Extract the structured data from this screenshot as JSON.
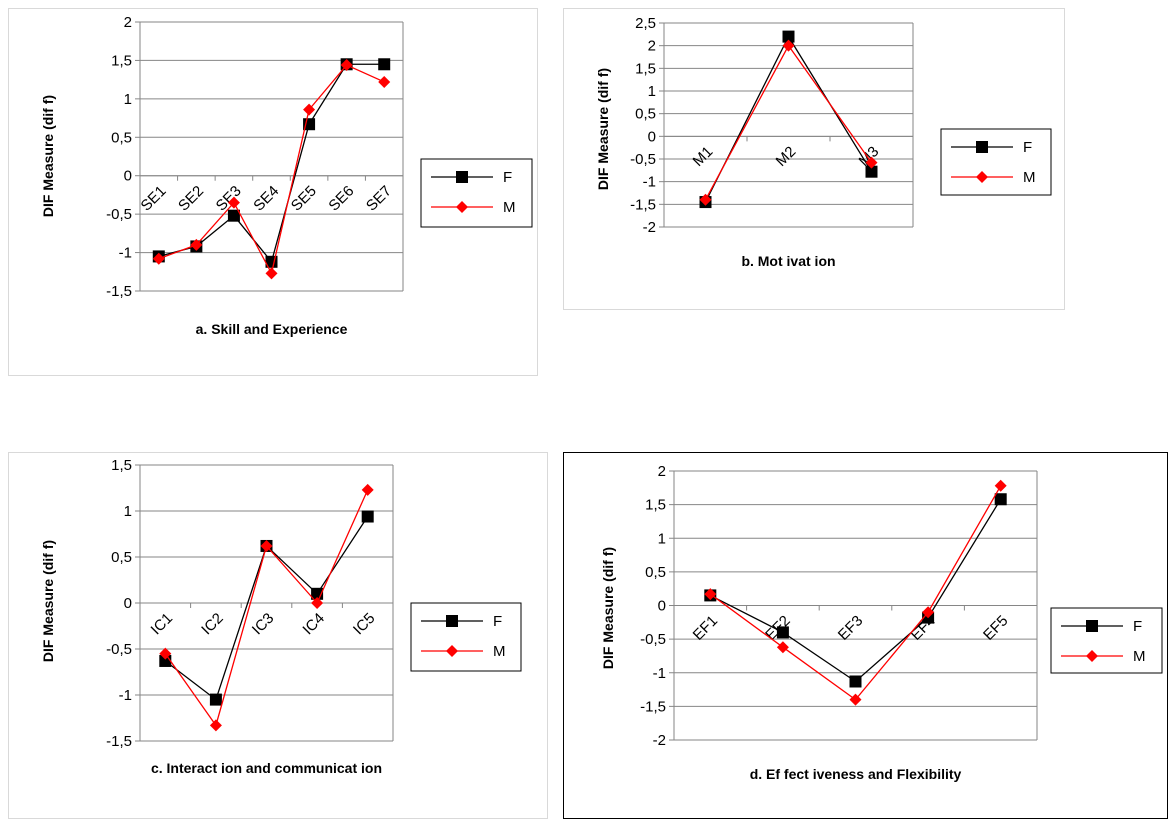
{
  "chart_data": [
    {
      "type": "line",
      "title": "a. Skill and Experience",
      "ylabel": "DIF Measure (dif f)",
      "categories": [
        "SE1",
        "SE2",
        "SE3",
        "SE4",
        "SE5",
        "SE6",
        "SE7"
      ],
      "ylim": [
        -1.5,
        2
      ],
      "yticks": [
        "-1,5",
        "-1",
        "-0,5",
        "0",
        "0,5",
        "1",
        "1,5",
        "2"
      ],
      "grid": true,
      "legend": "right",
      "series": [
        {
          "name": "F",
          "color": "#000000",
          "marker": "square",
          "values": [
            -1.05,
            -0.92,
            -0.52,
            -1.12,
            0.67,
            1.45,
            1.45
          ]
        },
        {
          "name": "M",
          "color": "#ff0000",
          "marker": "diamond",
          "values": [
            -1.08,
            -0.9,
            -0.35,
            -1.27,
            0.86,
            1.44,
            1.22
          ]
        }
      ]
    },
    {
      "type": "line",
      "title": "b. Mot ivat ion",
      "ylabel": "DIF Measure (dif f)",
      "categories": [
        "M1",
        "M2",
        "M3"
      ],
      "ylim": [
        -2,
        2.5
      ],
      "yticks": [
        "-2",
        "-1,5",
        "-1",
        "-0,5",
        "0",
        "0,5",
        "1",
        "1,5",
        "2",
        "2,5"
      ],
      "grid": true,
      "legend": "right",
      "series": [
        {
          "name": "F",
          "color": "#000000",
          "marker": "square",
          "values": [
            -1.45,
            2.2,
            -0.78
          ]
        },
        {
          "name": "M",
          "color": "#ff0000",
          "marker": "diamond",
          "values": [
            -1.4,
            2.0,
            -0.58
          ]
        }
      ]
    },
    {
      "type": "line",
      "title": "c. Interact ion and communicat ion",
      "ylabel": "DIF Measure (dif f)",
      "categories": [
        "IC1",
        "IC2",
        "IC3",
        "IC4",
        "IC5"
      ],
      "ylim": [
        -1.5,
        1.5
      ],
      "yticks": [
        "-1,5",
        "-1",
        "-0,5",
        "0",
        "0,5",
        "1",
        "1,5"
      ],
      "grid": true,
      "legend": "right",
      "series": [
        {
          "name": "F",
          "color": "#000000",
          "marker": "square",
          "values": [
            -0.63,
            -1.05,
            0.62,
            0.1,
            0.94
          ]
        },
        {
          "name": "M",
          "color": "#ff0000",
          "marker": "diamond",
          "values": [
            -0.55,
            -1.33,
            0.62,
            0.0,
            1.23
          ]
        }
      ]
    },
    {
      "type": "line",
      "title": "d. Ef fect iveness and Flexibility",
      "ylabel": "DIF Measure (dif f)",
      "categories": [
        "EF1",
        "EF2",
        "EF3",
        "EF4",
        "EF5"
      ],
      "ylim": [
        -2,
        2
      ],
      "yticks": [
        "-2",
        "-1,5",
        "-1",
        "-0,5",
        "0",
        "0,5",
        "1",
        "1,5",
        "2"
      ],
      "grid": true,
      "legend": "right",
      "series": [
        {
          "name": "F",
          "color": "#000000",
          "marker": "square",
          "values": [
            0.15,
            -0.4,
            -1.13,
            -0.18,
            1.58
          ]
        },
        {
          "name": "M",
          "color": "#ff0000",
          "marker": "diamond",
          "values": [
            0.17,
            -0.62,
            -1.4,
            -0.1,
            1.78
          ]
        }
      ]
    }
  ]
}
